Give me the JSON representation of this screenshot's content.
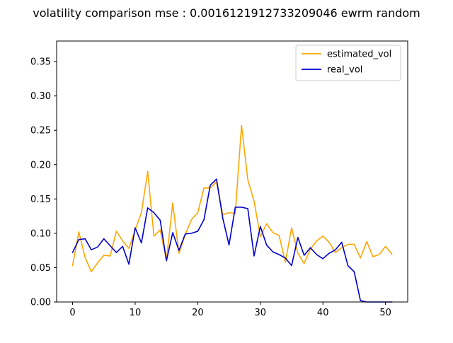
{
  "chart_data": {
    "type": "line",
    "title": "volatility comparison mse : 0.0016121912733209046 ewrm random",
    "xlabel": "",
    "ylabel": "",
    "xlim": [
      -2.55,
      53.55
    ],
    "ylim": [
      0,
      0.38
    ],
    "xticks": [
      0,
      10,
      20,
      30,
      40,
      50
    ],
    "xtick_labels": [
      "0",
      "10",
      "20",
      "30",
      "40",
      "50"
    ],
    "yticks": [
      0,
      0.05,
      0.1,
      0.15,
      0.2,
      0.25,
      0.3,
      0.35
    ],
    "ytick_labels": [
      "0.00",
      "0.05",
      "0.10",
      "0.15",
      "0.20",
      "0.25",
      "0.30",
      "0.35"
    ],
    "grid": false,
    "legend_position": "top-right",
    "x": [
      0,
      1,
      2,
      3,
      4,
      5,
      6,
      7,
      8,
      9,
      10,
      11,
      12,
      13,
      14,
      15,
      16,
      17,
      18,
      19,
      20,
      21,
      22,
      23,
      24,
      25,
      26,
      27,
      28,
      29,
      30,
      31,
      32,
      33,
      34,
      35,
      36,
      37,
      38,
      39,
      40,
      41,
      42,
      43,
      44,
      45,
      46,
      47,
      48,
      49,
      50,
      51
    ],
    "series": [
      {
        "name": "estimated_vol",
        "color": "#FFA500",
        "values": [
          0.053,
          0.102,
          0.065,
          0.044,
          0.057,
          0.068,
          0.067,
          0.103,
          0.089,
          0.078,
          0.105,
          0.13,
          0.19,
          0.096,
          0.105,
          0.061,
          0.144,
          0.071,
          0.098,
          0.12,
          0.13,
          0.166,
          0.166,
          0.175,
          0.127,
          0.13,
          0.129,
          0.257,
          0.178,
          0.147,
          0.095,
          0.114,
          0.101,
          0.097,
          0.058,
          0.108,
          0.071,
          0.056,
          0.077,
          0.089,
          0.096,
          0.087,
          0.072,
          0.079,
          0.084,
          0.084,
          0.064,
          0.088,
          0.066,
          0.069,
          0.081,
          0.07
        ]
      },
      {
        "name": "real_vol",
        "color": "#0000CD",
        "values": [
          0.072,
          0.091,
          0.092,
          0.076,
          0.08,
          0.092,
          0.082,
          0.072,
          0.081,
          0.055,
          0.108,
          0.086,
          0.137,
          0.13,
          0.119,
          0.06,
          0.101,
          0.075,
          0.099,
          0.1,
          0.103,
          0.12,
          0.17,
          0.179,
          0.122,
          0.083,
          0.138,
          0.138,
          0.136,
          0.067,
          0.11,
          0.083,
          0.073,
          0.069,
          0.064,
          0.053,
          0.094,
          0.068,
          0.079,
          0.069,
          0.063,
          0.071,
          0.076,
          0.087,
          0.053,
          0.044,
          0.002,
          0.0,
          0.0,
          0.0,
          0.0,
          0.0
        ]
      }
    ]
  }
}
